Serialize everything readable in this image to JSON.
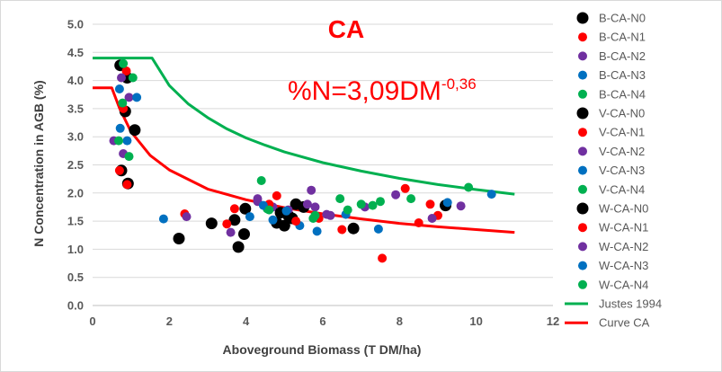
{
  "chart_data": {
    "type": "scatter",
    "title": "CA",
    "equation": {
      "base": "%N=3,09DM",
      "exponent": "-0,36"
    },
    "xlabel": "Aboveground Biomass (T DM/ha)",
    "ylabel": "N Concentration in AGB (%)",
    "xlim": [
      0,
      12
    ],
    "ylim": [
      0,
      5
    ],
    "xticks": [
      "0",
      "2",
      "4",
      "6",
      "8",
      "10",
      "12"
    ],
    "yticks": [
      "0.0",
      "0.5",
      "1.0",
      "1.5",
      "2.0",
      "2.5",
      "3.0",
      "3.5",
      "4.0",
      "4.5",
      "5.0"
    ],
    "grid": "horizontal",
    "legend_position": "right",
    "series": [
      {
        "name": "B-CA-N0",
        "color": "#000000",
        "marker": "large-circle",
        "points": [
          [
            0.72,
            4.27
          ],
          [
            0.85,
            3.45
          ],
          [
            0.92,
            2.17
          ],
          [
            1.1,
            3.12
          ],
          [
            0.9,
            4.05
          ],
          [
            0.75,
            2.4
          ]
        ]
      },
      {
        "name": "B-CA-N1",
        "color": "#ff0000",
        "marker": "circle",
        "points": [
          [
            0.88,
            4.17
          ],
          [
            0.8,
            3.5
          ],
          [
            0.7,
            2.4
          ],
          [
            0.9,
            2.15
          ]
        ]
      },
      {
        "name": "B-CA-N2",
        "color": "#7030a0",
        "marker": "circle",
        "points": [
          [
            0.75,
            4.05
          ],
          [
            0.95,
            3.7
          ],
          [
            0.55,
            2.93
          ],
          [
            0.8,
            2.7
          ]
        ]
      },
      {
        "name": "B-CA-N3",
        "color": "#0070c0",
        "marker": "circle",
        "points": [
          [
            0.7,
            3.85
          ],
          [
            1.15,
            3.7
          ],
          [
            0.9,
            2.93
          ],
          [
            0.72,
            3.15
          ]
        ]
      },
      {
        "name": "B-CA-N4",
        "color": "#00b050",
        "marker": "circle",
        "points": [
          [
            0.8,
            4.3
          ],
          [
            0.78,
            3.6
          ],
          [
            0.68,
            2.93
          ],
          [
            0.95,
            2.65
          ],
          [
            1.05,
            4.05
          ]
        ]
      },
      {
        "name": "V-CA-N0",
        "color": "#000000",
        "marker": "large-circle",
        "points": [
          [
            2.25,
            1.19
          ],
          [
            3.1,
            1.46
          ],
          [
            3.7,
            1.52
          ],
          [
            3.8,
            1.04
          ],
          [
            3.95,
            1.27
          ],
          [
            3.98,
            1.72
          ],
          [
            4.8,
            1.47
          ],
          [
            5.0,
            1.42
          ],
          [
            5.1,
            1.6
          ],
          [
            5.3,
            1.8
          ],
          [
            6.8,
            1.37
          ],
          [
            9.2,
            1.78
          ]
        ]
      },
      {
        "name": "V-CA-N1",
        "color": "#ff0000",
        "marker": "circle",
        "points": [
          [
            2.4,
            1.63
          ],
          [
            3.5,
            1.45
          ],
          [
            3.7,
            1.72
          ],
          [
            4.8,
            1.95
          ],
          [
            5.9,
            1.55
          ],
          [
            6.5,
            1.35
          ],
          [
            7.55,
            0.84
          ],
          [
            8.15,
            2.08
          ],
          [
            8.5,
            1.47
          ],
          [
            8.8,
            1.8
          ],
          [
            9.0,
            1.6
          ]
        ]
      },
      {
        "name": "V-CA-N2",
        "color": "#7030a0",
        "marker": "circle",
        "points": [
          [
            2.45,
            1.58
          ],
          [
            3.6,
            1.3
          ],
          [
            4.3,
            1.9
          ],
          [
            4.7,
            1.75
          ],
          [
            5.1,
            1.7
          ],
          [
            5.7,
            2.05
          ],
          [
            5.8,
            1.75
          ],
          [
            6.1,
            1.62
          ],
          [
            7.1,
            1.75
          ],
          [
            7.9,
            1.97
          ],
          [
            8.85,
            1.55
          ],
          [
            9.6,
            1.77
          ]
        ]
      },
      {
        "name": "V-CA-N3",
        "color": "#0070c0",
        "marker": "circle",
        "points": [
          [
            1.85,
            1.54
          ],
          [
            4.1,
            1.58
          ],
          [
            4.7,
            1.52
          ],
          [
            5.4,
            1.42
          ],
          [
            5.85,
            1.32
          ],
          [
            6.6,
            1.62
          ],
          [
            7.45,
            1.36
          ],
          [
            9.25,
            1.83
          ],
          [
            10.4,
            1.98
          ]
        ]
      },
      {
        "name": "V-CA-N4",
        "color": "#00b050",
        "marker": "circle",
        "points": [
          [
            4.4,
            2.22
          ],
          [
            4.55,
            1.72
          ],
          [
            5.8,
            1.6
          ],
          [
            6.45,
            1.9
          ],
          [
            6.65,
            1.7
          ],
          [
            7.0,
            1.8
          ],
          [
            7.3,
            1.78
          ],
          [
            7.5,
            1.85
          ],
          [
            8.3,
            1.9
          ],
          [
            9.8,
            2.1
          ]
        ]
      },
      {
        "name": "W-CA-N0",
        "color": "#000000",
        "marker": "large-circle",
        "points": [
          [
            4.9,
            1.65
          ],
          [
            5.2,
            1.55
          ],
          [
            5.5,
            1.75
          ]
        ]
      },
      {
        "name": "W-CA-N1",
        "color": "#ff0000",
        "marker": "circle",
        "points": [
          [
            4.6,
            1.8
          ],
          [
            5.3,
            1.5
          ]
        ]
      },
      {
        "name": "W-CA-N2",
        "color": "#7030a0",
        "marker": "circle",
        "points": [
          [
            4.3,
            1.85
          ],
          [
            5.6,
            1.8
          ],
          [
            6.2,
            1.6
          ]
        ]
      },
      {
        "name": "W-CA-N3",
        "color": "#0070c0",
        "marker": "circle",
        "points": [
          [
            4.45,
            1.78
          ],
          [
            5.05,
            1.68
          ]
        ]
      },
      {
        "name": "W-CA-N4",
        "color": "#00b050",
        "marker": "circle",
        "points": [
          [
            4.6,
            1.7
          ],
          [
            5.75,
            1.55
          ]
        ]
      },
      {
        "name": "Justes 1994",
        "color": "#00b050",
        "marker": "line",
        "points": [
          [
            0.0,
            4.4
          ],
          [
            1.55,
            4.4
          ],
          [
            1.55,
            4.4
          ],
          [
            2.0,
            3.91
          ],
          [
            2.5,
            3.58
          ],
          [
            3.0,
            3.34
          ],
          [
            3.5,
            3.14
          ],
          [
            4.0,
            2.98
          ],
          [
            4.5,
            2.85
          ],
          [
            5.0,
            2.73
          ],
          [
            6.0,
            2.54
          ],
          [
            7.0,
            2.39
          ],
          [
            8.0,
            2.26
          ],
          [
            9.0,
            2.15
          ],
          [
            10.0,
            2.06
          ],
          [
            11.0,
            1.98
          ]
        ]
      },
      {
        "name": "Curve CA",
        "color": "#ff0000",
        "marker": "line",
        "points": [
          [
            0.0,
            3.87
          ],
          [
            0.5,
            3.87
          ],
          [
            0.7,
            3.51
          ],
          [
            1.0,
            3.09
          ],
          [
            1.5,
            2.67
          ],
          [
            2.0,
            2.41
          ],
          [
            3.0,
            2.07
          ],
          [
            4.0,
            1.88
          ],
          [
            5.0,
            1.74
          ],
          [
            6.0,
            1.63
          ],
          [
            7.0,
            1.54
          ],
          [
            8.0,
            1.46
          ],
          [
            9.0,
            1.4
          ],
          [
            10.0,
            1.35
          ],
          [
            11.0,
            1.3
          ]
        ]
      }
    ]
  }
}
